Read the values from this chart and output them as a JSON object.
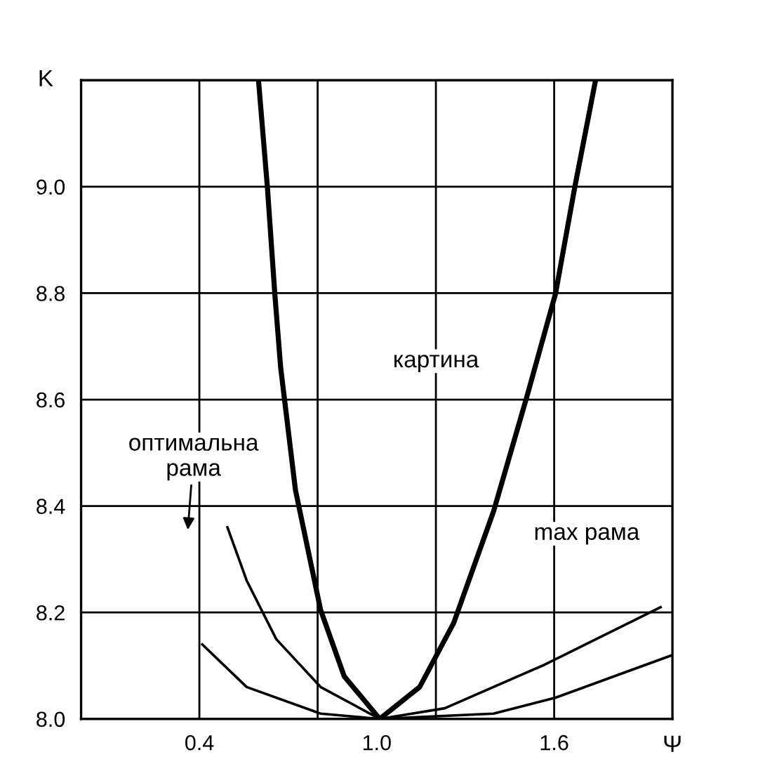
{
  "chart_data": {
    "type": "line",
    "xlabel": "Ψ",
    "ylabel": "K",
    "xlim": [
      0,
      2.0
    ],
    "ylim": [
      8.0,
      9.2
    ],
    "xticks": [
      0.4,
      {
        "value": 1.0,
        "label": "1.0"
      },
      1.6
    ],
    "yticks": [
      {
        "value": 8.0,
        "label": "8.0"
      },
      8.2,
      8.4,
      8.6,
      8.8,
      {
        "value": 9.0,
        "label": "9.0"
      },
      {
        "value": 9.2,
        "label": null
      }
    ],
    "grid": "y",
    "ref_lines": [
      {
        "axis": "x",
        "value": 0.4,
        "label": null
      },
      {
        "axis": "x",
        "value": 0.8,
        "label": null
      },
      {
        "axis": "x",
        "value": 1.2,
        "label": null
      },
      {
        "axis": "x",
        "value": 1.6,
        "label": null
      }
    ],
    "marker": "none",
    "line_style": "solid",
    "series": [
      {
        "color": "#000000",
        "x": [
          0.6,
          0.63,
          0.655,
          0.675,
          0.725,
          0.81,
          0.89,
          1.01,
          1.145,
          1.26,
          1.395,
          1.51,
          1.605,
          1.67,
          1.74
        ],
        "values": [
          9.2,
          9.0,
          8.8,
          8.66,
          8.43,
          8.205,
          8.08,
          8.0,
          8.06,
          8.18,
          8.39,
          8.61,
          8.8,
          9.0,
          9.2
        ]
      },
      {
        "color": "#000000",
        "x": [
          0.495,
          0.56,
          0.66,
          0.81,
          1.01,
          1.23,
          1.56,
          1.96
        ],
        "values": [
          8.36,
          8.26,
          8.15,
          8.06,
          8.0,
          8.02,
          8.1,
          8.21
        ]
      },
      {
        "color": "#000000",
        "x": [
          0.41,
          0.56,
          0.81,
          1.01,
          1.395,
          1.605,
          2.0
        ],
        "values": [
          8.14,
          8.06,
          8.01,
          8.0,
          8.01,
          8.04,
          8.12
        ]
      }
    ],
    "annotations": [
      "картина",
      "оптимальна\nрама",
      "max рама"
    ]
  }
}
